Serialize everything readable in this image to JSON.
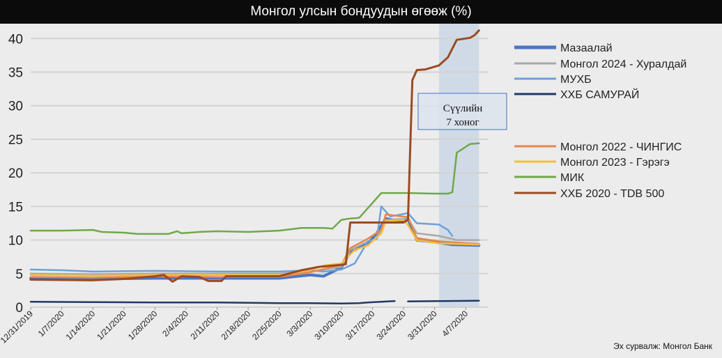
{
  "chart_data": {
    "type": "line",
    "title": "Монгол улсын бондуудын өгөөж (%)",
    "xlabel": "",
    "ylabel": "",
    "ylim": [
      0,
      42
    ],
    "yticks": [
      0,
      5,
      10,
      15,
      20,
      25,
      30,
      35,
      40
    ],
    "xlim": [
      "2019-12-31",
      "2020-04-12"
    ],
    "xtick_labels": [
      "12/31/2019",
      "1/7/2020",
      "1/14/2020",
      "1/21/2020",
      "1/28/2020",
      "2/4/2020",
      "2/11/2020",
      "2/18/2020",
      "2/25/2020",
      "3/3/2020",
      "3/10/2020",
      "3/17/2020",
      "3/24/2020",
      "3/31/2020",
      "4/7/2020"
    ],
    "grid": true,
    "legend": "right",
    "series": [
      {
        "name": "Мазаалай",
        "color": "#4a76c4",
        "width": 4,
        "points": [
          [
            "2019-12-31",
            4.3
          ],
          [
            "2020-01-14",
            4.2
          ],
          [
            "2020-01-28",
            4.3
          ],
          [
            "2020-02-11",
            4.3
          ],
          [
            "2020-02-25",
            4.3
          ],
          [
            "2020-03-03",
            4.8
          ],
          [
            "2020-03-06",
            4.6
          ],
          [
            "2020-03-10",
            5.9
          ],
          [
            "2020-03-12",
            8.2
          ],
          [
            "2020-03-16",
            9.5
          ],
          [
            "2020-03-18",
            11.0
          ],
          [
            "2020-03-20",
            13.2
          ],
          [
            "2020-03-23",
            12.8
          ],
          [
            "2020-03-25",
            13.1
          ],
          [
            "2020-03-27",
            10.0
          ],
          [
            "2020-04-01",
            9.6
          ],
          [
            "2020-04-04",
            9.3
          ],
          [
            "2020-04-10",
            9.2
          ]
        ]
      },
      {
        "name": "Монгол 2024 - Хуралдай",
        "color": "#a9a9a9",
        "width": 2.5,
        "points": [
          [
            "2019-12-31",
            5.0
          ],
          [
            "2020-01-14",
            4.9
          ],
          [
            "2020-01-28",
            5.0
          ],
          [
            "2020-02-11",
            5.0
          ],
          [
            "2020-02-25",
            5.0
          ],
          [
            "2020-03-03",
            5.3
          ],
          [
            "2020-03-10",
            6.0
          ],
          [
            "2020-03-12",
            8.5
          ],
          [
            "2020-03-16",
            9.8
          ],
          [
            "2020-03-18",
            10.2
          ],
          [
            "2020-03-20",
            13.0
          ],
          [
            "2020-03-25",
            13.2
          ],
          [
            "2020-03-27",
            11.0
          ],
          [
            "2020-04-01",
            10.6
          ],
          [
            "2020-04-05",
            10.0
          ],
          [
            "2020-04-10",
            10.0
          ]
        ]
      },
      {
        "name": "МУХБ",
        "color": "#6fa0d8",
        "width": 2.5,
        "points": [
          [
            "2019-12-31",
            5.6
          ],
          [
            "2020-01-07",
            5.5
          ],
          [
            "2020-01-14",
            5.3
          ],
          [
            "2020-01-28",
            5.4
          ],
          [
            "2020-02-11",
            5.3
          ],
          [
            "2020-02-25",
            5.3
          ],
          [
            "2020-03-03",
            5.5
          ],
          [
            "2020-03-06",
            5.3
          ],
          [
            "2020-03-10",
            5.6
          ],
          [
            "2020-03-13",
            6.5
          ],
          [
            "2020-03-16",
            9.8
          ],
          [
            "2020-03-18",
            10.2
          ],
          [
            "2020-03-19",
            15.0
          ],
          [
            "2020-03-21",
            13.5
          ],
          [
            "2020-03-25",
            14.0
          ],
          [
            "2020-03-27",
            12.5
          ],
          [
            "2020-04-01",
            12.3
          ],
          [
            "2020-04-03",
            11.5
          ],
          [
            "2020-04-04",
            10.6
          ]
        ]
      },
      {
        "name": "ХХБ САМУРАЙ",
        "color": "#1f3864",
        "width": 2.5,
        "points": [
          [
            "2019-12-31",
            0.8
          ],
          [
            "2020-01-14",
            0.75
          ],
          [
            "2020-01-28",
            0.7
          ],
          [
            "2020-02-11",
            0.7
          ],
          [
            "2020-02-25",
            0.6
          ],
          [
            "2020-03-03",
            0.6
          ],
          [
            "2020-03-10",
            0.55
          ],
          [
            "2020-03-14",
            0.6
          ],
          [
            "2020-03-16",
            0.7
          ],
          [
            "2020-03-22",
            0.9
          ],
          null,
          [
            "2020-03-25",
            0.85
          ],
          [
            "2020-04-01",
            0.9
          ],
          [
            "2020-04-10",
            0.95
          ]
        ]
      },
      {
        "name": "Монгол 2022 - ЧИНГИС",
        "color": "#e8864a",
        "width": 2.5,
        "points": [
          [
            "2019-12-31",
            4.5
          ],
          [
            "2020-01-14",
            4.4
          ],
          [
            "2020-01-28",
            4.6
          ],
          [
            "2020-02-11",
            4.5
          ],
          [
            "2020-02-25",
            4.5
          ],
          [
            "2020-03-03",
            5.2
          ],
          [
            "2020-03-10",
            6.3
          ],
          [
            "2020-03-12",
            8.8
          ],
          [
            "2020-03-16",
            10.2
          ],
          [
            "2020-03-19",
            11.5
          ],
          [
            "2020-03-20",
            13.8
          ],
          [
            "2020-03-25",
            13.4
          ],
          [
            "2020-03-27",
            10.3
          ],
          [
            "2020-04-01",
            9.8
          ],
          [
            "2020-04-10",
            9.4
          ]
        ]
      },
      {
        "name": "Монгол 2023 - Гэрэгэ",
        "color": "#f5be3b",
        "width": 2.5,
        "points": [
          [
            "2019-12-31",
            4.8
          ],
          [
            "2020-01-14",
            4.7
          ],
          [
            "2020-01-28",
            4.8
          ],
          [
            "2020-02-11",
            4.8
          ],
          [
            "2020-02-25",
            4.8
          ],
          [
            "2020-03-03",
            5.5
          ],
          [
            "2020-03-06",
            6.2
          ],
          [
            "2020-03-10",
            6.5
          ],
          [
            "2020-03-13",
            8.5
          ],
          [
            "2020-03-16",
            9.2
          ],
          [
            "2020-03-19",
            11.0
          ],
          [
            "2020-03-20",
            12.8
          ],
          [
            "2020-03-24",
            13.0
          ],
          [
            "2020-03-25",
            12.2
          ],
          [
            "2020-03-27",
            10.0
          ],
          [
            "2020-04-01",
            9.5
          ],
          [
            "2020-04-10",
            9.3
          ]
        ]
      },
      {
        "name": "МИК",
        "color": "#70a84a",
        "width": 2.5,
        "points": [
          [
            "2019-12-31",
            11.4
          ],
          [
            "2020-01-07",
            11.4
          ],
          [
            "2020-01-14",
            11.5
          ],
          [
            "2020-01-16",
            11.2
          ],
          [
            "2020-01-21",
            11.1
          ],
          [
            "2020-01-24",
            10.9
          ],
          [
            "2020-01-31",
            10.9
          ],
          [
            "2020-02-02",
            11.3
          ],
          [
            "2020-02-03",
            11.0
          ],
          [
            "2020-02-07",
            11.2
          ],
          [
            "2020-02-11",
            11.3
          ],
          [
            "2020-02-18",
            11.2
          ],
          [
            "2020-02-25",
            11.4
          ],
          [
            "2020-03-01",
            11.8
          ],
          [
            "2020-03-06",
            11.8
          ],
          [
            "2020-03-08",
            11.7
          ],
          [
            "2020-03-10",
            13.0
          ],
          [
            "2020-03-12",
            13.2
          ],
          [
            "2020-03-14",
            13.3
          ],
          [
            "2020-03-17",
            15.5
          ],
          [
            "2020-03-19",
            17.0
          ],
          [
            "2020-03-25",
            17.0
          ],
          [
            "2020-03-31",
            16.9
          ],
          [
            "2020-04-03",
            16.9
          ],
          [
            "2020-04-04",
            17.1
          ],
          [
            "2020-04-05",
            23.0
          ],
          [
            "2020-04-08",
            24.3
          ],
          [
            "2020-04-10",
            24.4
          ]
        ]
      },
      {
        "name": "ХХБ 2020 - TDB 500",
        "color": "#9a4a23",
        "width": 3,
        "points": [
          [
            "2019-12-31",
            4.1
          ],
          [
            "2020-01-14",
            4.0
          ],
          [
            "2020-01-21",
            4.2
          ],
          [
            "2020-01-28",
            4.6
          ],
          [
            "2020-01-30",
            4.8
          ],
          [
            "2020-02-01",
            3.8
          ],
          [
            "2020-02-03",
            4.6
          ],
          [
            "2020-02-07",
            4.5
          ],
          [
            "2020-02-09",
            3.9
          ],
          [
            "2020-02-12",
            3.9
          ],
          [
            "2020-02-13",
            4.6
          ],
          [
            "2020-02-25",
            4.6
          ],
          [
            "2020-03-01",
            5.5
          ],
          [
            "2020-03-05",
            6.0
          ],
          [
            "2020-03-10",
            6.3
          ],
          [
            "2020-03-11",
            6.4
          ],
          [
            "2020-03-12",
            12.6
          ],
          [
            "2020-03-24",
            12.6
          ],
          [
            "2020-03-25",
            13.0
          ],
          [
            "2020-03-26",
            33.8
          ],
          [
            "2020-03-27",
            35.3
          ],
          [
            "2020-03-29",
            35.4
          ],
          [
            "2020-04-01",
            36.0
          ],
          [
            "2020-04-03",
            37.2
          ],
          [
            "2020-04-05",
            39.8
          ],
          [
            "2020-04-08",
            40.1
          ],
          [
            "2020-04-09",
            40.5
          ],
          [
            "2020-04-10",
            41.2
          ]
        ]
      }
    ],
    "highlight": {
      "start": "2020-04-01",
      "end": "2020-04-10",
      "label_line1": "Сүүлийн",
      "label_line2": "7 хоног",
      "color": "#d0dae6"
    }
  },
  "footer": {
    "source": "Эх сурвалж: Монгол Банк"
  }
}
